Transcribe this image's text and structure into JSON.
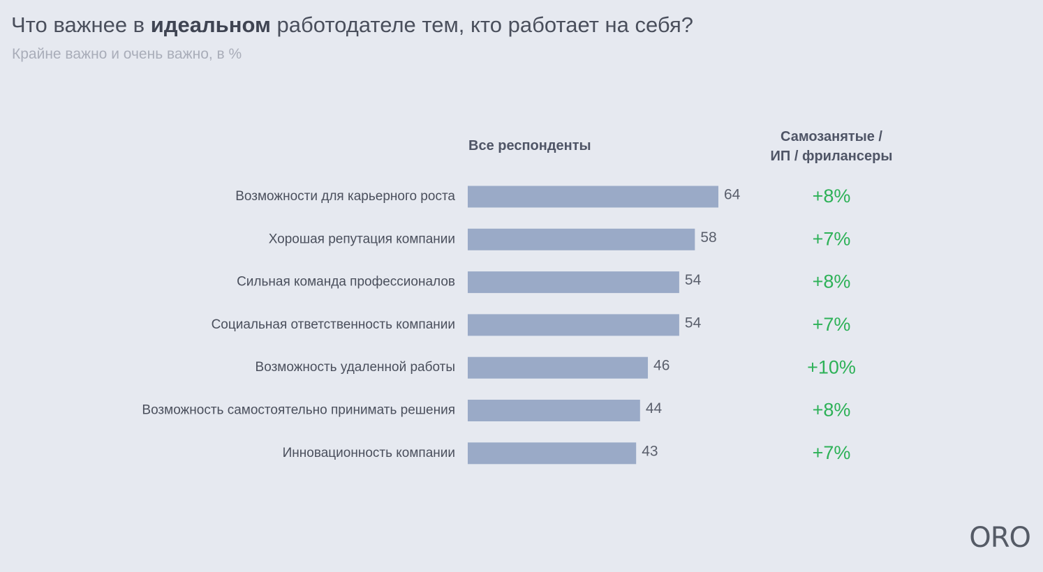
{
  "header": {
    "title_pre": "Что важнее в ",
    "title_bold": "идеальном",
    "title_post": " работодателе тем, кто работает на себя?",
    "subtitle": "Крайне важно и очень важно, в %"
  },
  "columns": {
    "all": "Все респонденты",
    "self_line1": "Самозанятые /",
    "self_line2": "ИП / фрилансеры"
  },
  "logo": "ORO",
  "colors": {
    "bar": "#9aaac7",
    "delta": "#2db157",
    "background": "#e6e9f0"
  },
  "chart_data": {
    "type": "bar",
    "orientation": "horizontal",
    "title": "Что важнее в идеальном работодателе тем, кто работает на себя?",
    "subtitle": "Крайне важно и очень важно, в %",
    "categories": [
      "Возможности для карьерного роста",
      "Хорошая репутация компании",
      "Сильная команда профессионалов",
      "Социальная ответственность компании",
      "Возможность удаленной работы",
      "Возможность самостоятельно принимать решения",
      "Инновационность компании"
    ],
    "series": [
      {
        "name": "Все респонденты",
        "values": [
          64,
          58,
          54,
          54,
          46,
          44,
          43
        ]
      }
    ],
    "delta_column": {
      "name": "Самозанятые / ИП / фрилансеры",
      "values": [
        "+8%",
        "+7%",
        "+8%",
        "+7%",
        "+10%",
        "+8%",
        "+7%"
      ]
    },
    "xlim": [
      0,
      64
    ],
    "grid": false,
    "legend": "none"
  }
}
